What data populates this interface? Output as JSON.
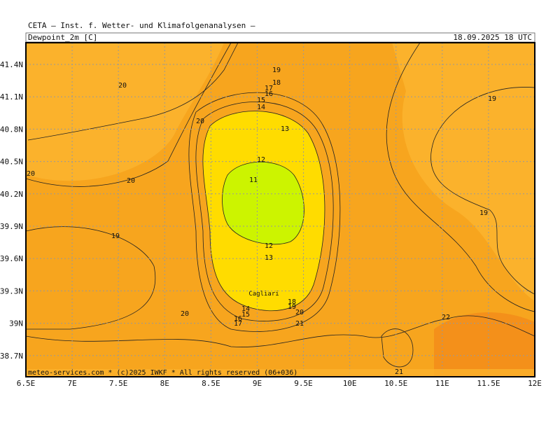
{
  "header": {
    "institute": "CETA — Inst. f. Wetter- und Klimafolgenanalysen —",
    "field": "Dewpoint_2m [C]",
    "time": "18.09.2025 18 UTC"
  },
  "axes": {
    "lon_labels": [
      "6.5E",
      "7E",
      "7.5E",
      "8E",
      "8.5E",
      "9E",
      "9.5E",
      "10E",
      "10.5E",
      "11E",
      "11.5E",
      "12E"
    ],
    "lat_labels": [
      "41.4N",
      "41.1N",
      "40.8N",
      "40.5N",
      "40.2N",
      "39.9N",
      "39.6N",
      "39.3N",
      "39N",
      "38.7N"
    ]
  },
  "contour_labels": [
    "20",
    "20",
    "19",
    "18",
    "17",
    "16",
    "15",
    "14",
    "13",
    "12",
    "11",
    "20",
    "20",
    "19",
    "19",
    "19",
    "12",
    "13",
    "20",
    "14",
    "15",
    "16",
    "17",
    "18",
    "19",
    "20",
    "21",
    "22",
    "21"
  ],
  "place": "Cagliari",
  "footer": "meteo-services.com * (c)2025 IWKF * All rights reserved (06+036)"
}
